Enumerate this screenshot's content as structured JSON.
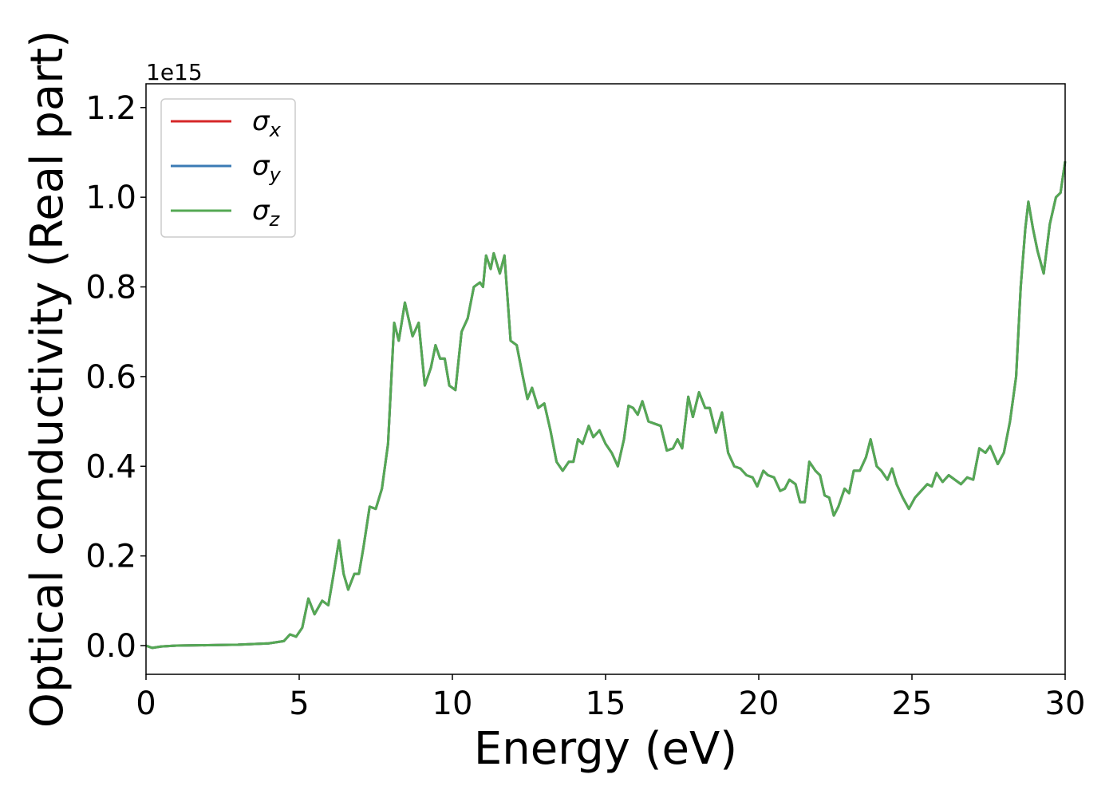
{
  "chart_data": {
    "type": "line",
    "x_label": "Energy (eV)",
    "y_label": "Optical conductivity (Real part)",
    "y_offset_label": "1e15",
    "legend": "upper left",
    "xlim": [
      0,
      30
    ],
    "ylim": [
      -0.064,
      1.253
    ],
    "xticks": [
      0,
      5,
      10,
      15,
      20,
      25,
      30
    ],
    "yticks": [
      {
        "value": 0,
        "label": "0.0"
      },
      {
        "value": 0.2,
        "label": "0.2"
      },
      {
        "value": 0.4,
        "label": "0.4"
      },
      {
        "value": 0.6,
        "label": "0.6"
      },
      {
        "value": 0.8,
        "label": "0.8"
      },
      {
        "value": 1.0,
        "label": "1.0"
      },
      {
        "value": 1.2,
        "label": "1.2"
      }
    ],
    "x": [
      0,
      0.2,
      0.5,
      1,
      2,
      3,
      4,
      4.5,
      4.7,
      4.9,
      5.1,
      5.3,
      5.5,
      5.75,
      5.95,
      6.1,
      6.3,
      6.45,
      6.6,
      6.8,
      6.95,
      7.1,
      7.3,
      7.5,
      7.7,
      7.9,
      8.1,
      8.25,
      8.45,
      8.7,
      8.9,
      9.1,
      9.3,
      9.45,
      9.6,
      9.75,
      9.9,
      10.1,
      10.3,
      10.5,
      10.7,
      10.9,
      11.0,
      11.1,
      11.25,
      11.35,
      11.55,
      11.7,
      11.9,
      12.1,
      12.3,
      12.45,
      12.6,
      12.8,
      13.0,
      13.2,
      13.4,
      13.6,
      13.8,
      13.95,
      14.1,
      14.25,
      14.45,
      14.6,
      14.8,
      15.0,
      15.2,
      15.4,
      15.6,
      15.75,
      15.9,
      16.05,
      16.2,
      16.4,
      16.6,
      16.8,
      17.0,
      17.2,
      17.35,
      17.5,
      17.7,
      17.85,
      18.05,
      18.25,
      18.4,
      18.6,
      18.8,
      19.0,
      19.2,
      19.4,
      19.6,
      19.8,
      19.95,
      20.15,
      20.3,
      20.5,
      20.7,
      20.85,
      21.0,
      21.2,
      21.35,
      21.5,
      21.65,
      21.85,
      22.0,
      22.15,
      22.3,
      22.45,
      22.6,
      22.8,
      22.95,
      23.1,
      23.3,
      23.5,
      23.65,
      23.85,
      24.0,
      24.2,
      24.35,
      24.5,
      24.7,
      24.9,
      25.1,
      25.3,
      25.5,
      25.65,
      25.8,
      26.0,
      26.2,
      26.4,
      26.6,
      26.8,
      27.0,
      27.2,
      27.4,
      27.55,
      27.8,
      28.0,
      28.2,
      28.4,
      28.55,
      28.7,
      28.8,
      28.95,
      29.1,
      29.3,
      29.5,
      29.7,
      29.85,
      30.0
    ],
    "series": [
      {
        "name": "σx",
        "color": "#d62728",
        "values": [
          0,
          -0.005,
          -0.002,
          0,
          0.001,
          0.002,
          0.005,
          0.01,
          0.025,
          0.02,
          0.04,
          0.105,
          0.07,
          0.1,
          0.09,
          0.15,
          0.235,
          0.16,
          0.125,
          0.16,
          0.16,
          0.22,
          0.31,
          0.305,
          0.35,
          0.45,
          0.72,
          0.68,
          0.765,
          0.69,
          0.72,
          0.58,
          0.62,
          0.67,
          0.64,
          0.64,
          0.58,
          0.57,
          0.7,
          0.73,
          0.8,
          0.81,
          0.8,
          0.87,
          0.84,
          0.875,
          0.83,
          0.87,
          0.68,
          0.67,
          0.6,
          0.55,
          0.575,
          0.53,
          0.54,
          0.48,
          0.41,
          0.39,
          0.41,
          0.41,
          0.46,
          0.45,
          0.49,
          0.465,
          0.48,
          0.45,
          0.43,
          0.4,
          0.46,
          0.535,
          0.53,
          0.515,
          0.545,
          0.5,
          0.495,
          0.49,
          0.435,
          0.44,
          0.46,
          0.44,
          0.555,
          0.51,
          0.565,
          0.53,
          0.53,
          0.475,
          0.52,
          0.43,
          0.4,
          0.395,
          0.38,
          0.375,
          0.355,
          0.39,
          0.38,
          0.375,
          0.345,
          0.35,
          0.37,
          0.36,
          0.32,
          0.32,
          0.41,
          0.39,
          0.38,
          0.335,
          0.33,
          0.29,
          0.31,
          0.35,
          0.34,
          0.39,
          0.39,
          0.42,
          0.46,
          0.4,
          0.39,
          0.37,
          0.395,
          0.36,
          0.33,
          0.305,
          0.33,
          0.345,
          0.36,
          0.355,
          0.385,
          0.365,
          0.38,
          0.37,
          0.36,
          0.375,
          0.37,
          0.44,
          0.43,
          0.445,
          0.405,
          0.43,
          0.5,
          0.6,
          0.8,
          0.93,
          0.99,
          0.93,
          0.88,
          0.83,
          0.94,
          1.0,
          1.01,
          1.08
        ]
      },
      {
        "name": "σy",
        "color": "#3b7bb5",
        "values": [
          0,
          -0.005,
          -0.002,
          0,
          0.001,
          0.002,
          0.005,
          0.01,
          0.025,
          0.02,
          0.04,
          0.105,
          0.07,
          0.1,
          0.09,
          0.15,
          0.235,
          0.16,
          0.125,
          0.16,
          0.16,
          0.22,
          0.31,
          0.305,
          0.35,
          0.45,
          0.72,
          0.68,
          0.765,
          0.69,
          0.72,
          0.58,
          0.62,
          0.67,
          0.64,
          0.64,
          0.58,
          0.57,
          0.7,
          0.73,
          0.8,
          0.81,
          0.8,
          0.87,
          0.84,
          0.875,
          0.83,
          0.87,
          0.68,
          0.67,
          0.6,
          0.55,
          0.575,
          0.53,
          0.54,
          0.48,
          0.41,
          0.39,
          0.41,
          0.41,
          0.46,
          0.45,
          0.49,
          0.465,
          0.48,
          0.45,
          0.43,
          0.4,
          0.46,
          0.535,
          0.53,
          0.515,
          0.545,
          0.5,
          0.495,
          0.49,
          0.435,
          0.44,
          0.46,
          0.44,
          0.555,
          0.51,
          0.565,
          0.53,
          0.53,
          0.475,
          0.52,
          0.43,
          0.4,
          0.395,
          0.38,
          0.375,
          0.355,
          0.39,
          0.38,
          0.375,
          0.345,
          0.35,
          0.37,
          0.36,
          0.32,
          0.32,
          0.41,
          0.39,
          0.38,
          0.335,
          0.33,
          0.29,
          0.31,
          0.35,
          0.34,
          0.39,
          0.39,
          0.42,
          0.46,
          0.4,
          0.39,
          0.37,
          0.395,
          0.36,
          0.33,
          0.305,
          0.33,
          0.345,
          0.36,
          0.355,
          0.385,
          0.365,
          0.38,
          0.37,
          0.36,
          0.375,
          0.37,
          0.44,
          0.43,
          0.445,
          0.405,
          0.43,
          0.5,
          0.6,
          0.8,
          0.93,
          0.99,
          0.93,
          0.88,
          0.83,
          0.94,
          1.0,
          1.01,
          1.08
        ]
      },
      {
        "name": "σz",
        "color": "#55a854",
        "values": [
          0,
          -0.005,
          -0.002,
          0,
          0.001,
          0.002,
          0.005,
          0.01,
          0.025,
          0.02,
          0.04,
          0.105,
          0.07,
          0.1,
          0.09,
          0.15,
          0.235,
          0.16,
          0.125,
          0.16,
          0.16,
          0.22,
          0.31,
          0.305,
          0.35,
          0.45,
          0.72,
          0.68,
          0.765,
          0.69,
          0.72,
          0.58,
          0.62,
          0.67,
          0.64,
          0.64,
          0.58,
          0.57,
          0.7,
          0.73,
          0.8,
          0.81,
          0.8,
          0.87,
          0.84,
          0.875,
          0.83,
          0.87,
          0.68,
          0.67,
          0.6,
          0.55,
          0.575,
          0.53,
          0.54,
          0.48,
          0.41,
          0.39,
          0.41,
          0.41,
          0.46,
          0.45,
          0.49,
          0.465,
          0.48,
          0.45,
          0.43,
          0.4,
          0.46,
          0.535,
          0.53,
          0.515,
          0.545,
          0.5,
          0.495,
          0.49,
          0.435,
          0.44,
          0.46,
          0.44,
          0.555,
          0.51,
          0.565,
          0.53,
          0.53,
          0.475,
          0.52,
          0.43,
          0.4,
          0.395,
          0.38,
          0.375,
          0.355,
          0.39,
          0.38,
          0.375,
          0.345,
          0.35,
          0.37,
          0.36,
          0.32,
          0.32,
          0.41,
          0.39,
          0.38,
          0.335,
          0.33,
          0.29,
          0.31,
          0.35,
          0.34,
          0.39,
          0.39,
          0.42,
          0.46,
          0.4,
          0.39,
          0.37,
          0.395,
          0.36,
          0.33,
          0.305,
          0.33,
          0.345,
          0.36,
          0.355,
          0.385,
          0.365,
          0.38,
          0.37,
          0.36,
          0.375,
          0.37,
          0.44,
          0.43,
          0.445,
          0.405,
          0.43,
          0.5,
          0.6,
          0.8,
          0.93,
          0.99,
          0.93,
          0.88,
          0.83,
          0.94,
          1.0,
          1.01,
          1.08
        ]
      }
    ]
  }
}
